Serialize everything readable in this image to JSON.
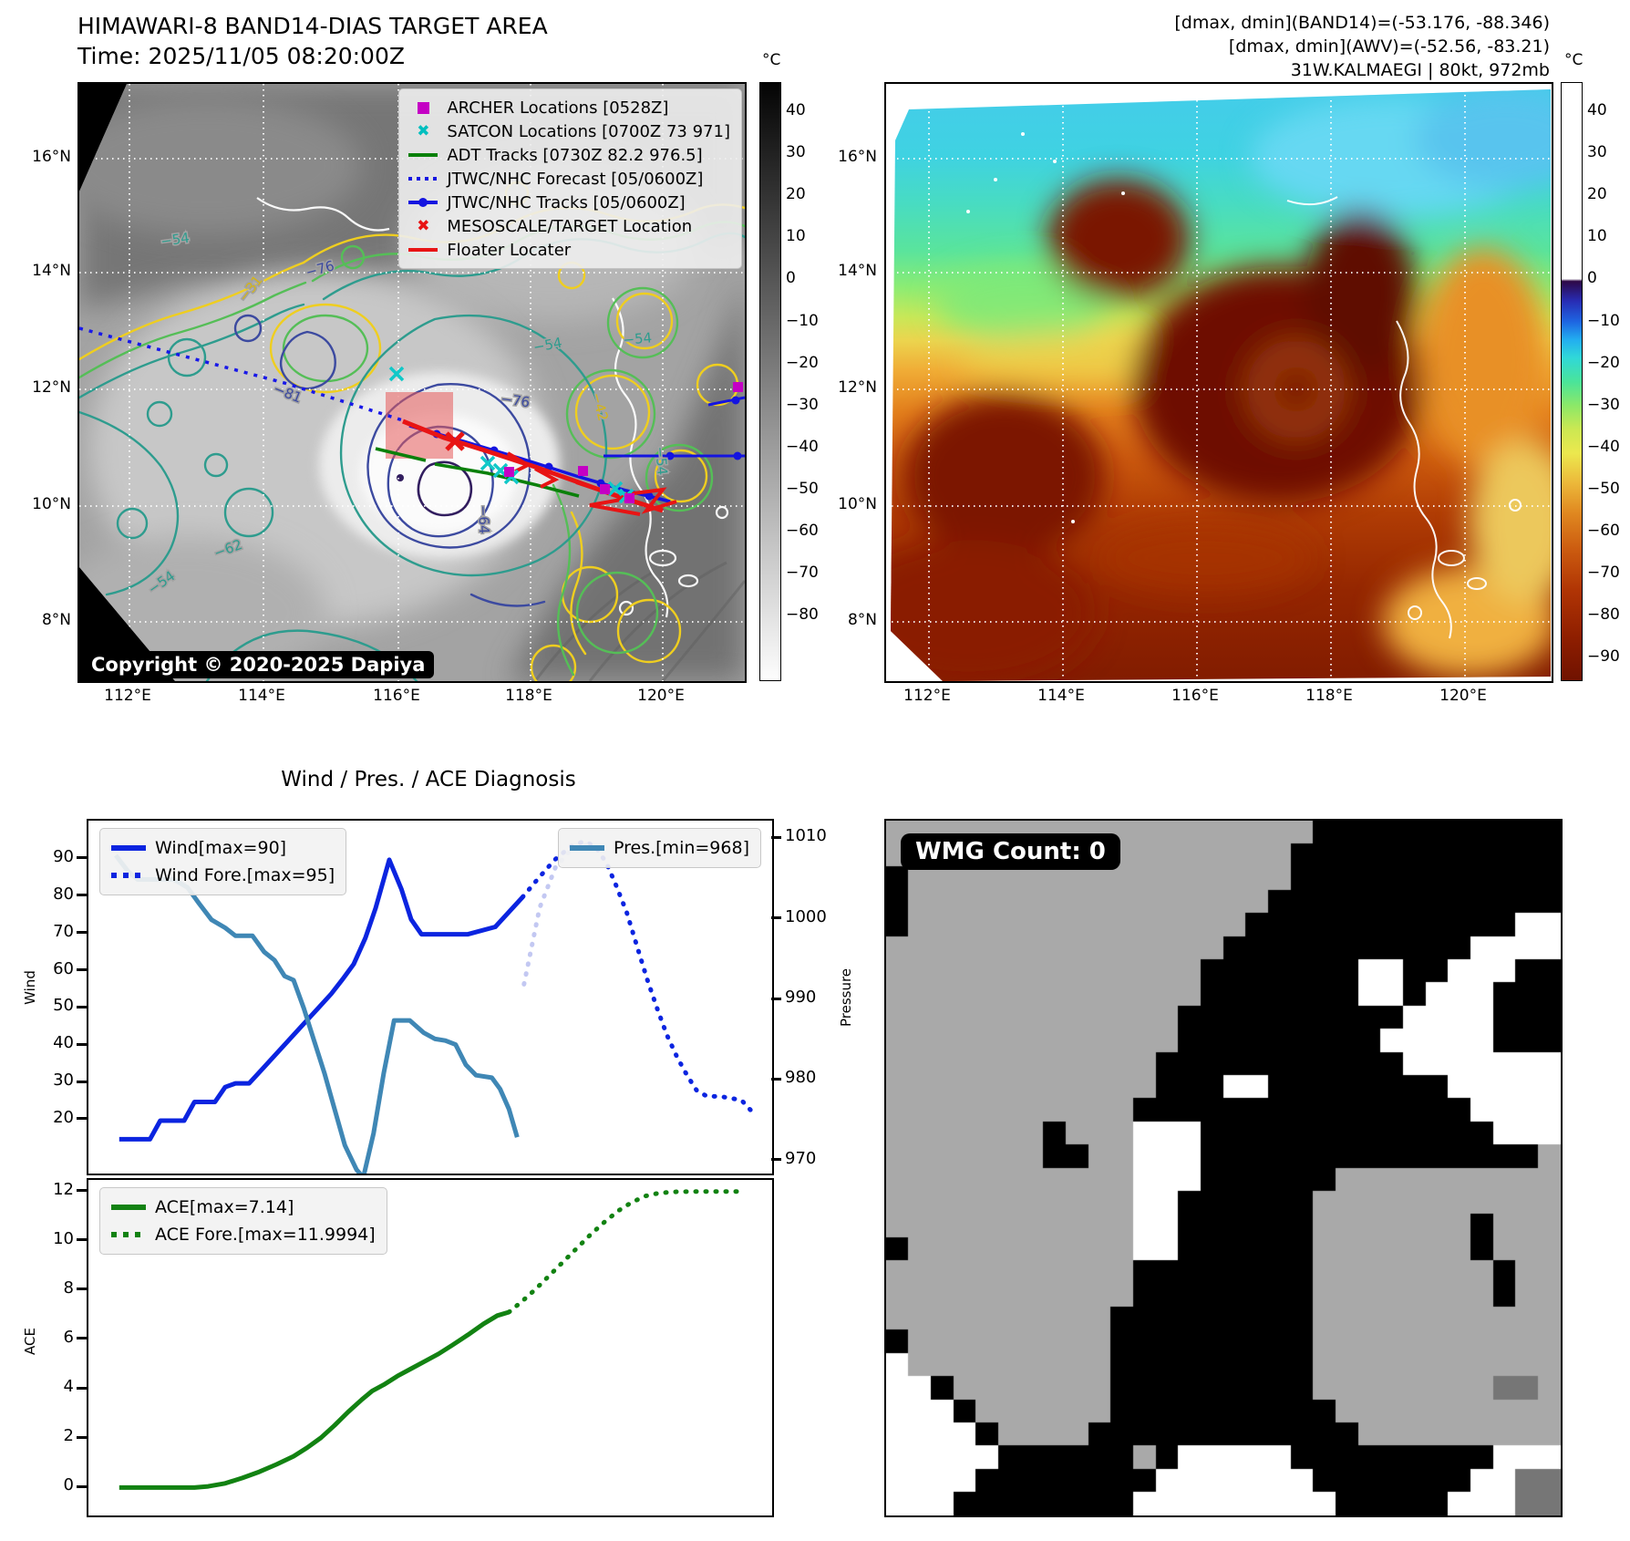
{
  "header": {
    "title": "HIMAWARI-8 BAND14-DIAS TARGET AREA",
    "time": "Time: 2025/11/05 08:20:00Z",
    "right_lines": [
      "[dmax, dmin](BAND14)=(-53.176, -88.346)",
      "[dmax, dmin](AWV)=(-52.56, -83.21)",
      "31W.KALMAEGI | 80kt, 972mb"
    ]
  },
  "left_map": {
    "legend": [
      {
        "label": "ARCHER Locations [0528Z]",
        "marker": "magenta-square"
      },
      {
        "label": "SATCON Locations [0700Z 73 971]",
        "marker": "cyan-x"
      },
      {
        "label": "ADT Tracks [0730Z 82.2 976.5]",
        "marker": "green-line"
      },
      {
        "label": "JTWC/NHC Forecast [05/0600Z]",
        "marker": "blue-dotted-line"
      },
      {
        "label": "JTWC/NHC Tracks [05/0600Z]",
        "marker": "blue-line-dot"
      },
      {
        "label": "MESOSCALE/TARGET Location",
        "marker": "red-x"
      },
      {
        "label": "Floater Locater",
        "marker": "red-line"
      }
    ],
    "copyright": "Copyright © 2020-2025 Dapiya",
    "x_ticks": [
      "112°E",
      "114°E",
      "116°E",
      "118°E",
      "120°E"
    ],
    "y_ticks": [
      "16°N",
      "14°N",
      "12°N",
      "10°N",
      "8°N"
    ],
    "colorbar": {
      "unit": "°C",
      "ticks": [
        "40",
        "30",
        "20",
        "10",
        "0",
        "−10",
        "−20",
        "−30",
        "−40",
        "−50",
        "−60",
        "−70",
        "−80"
      ]
    },
    "contour_labels": [
      {
        "text": "−76"
      },
      {
        "text": "−76"
      },
      {
        "text": "−54"
      },
      {
        "text": "−54"
      },
      {
        "text": "−54"
      },
      {
        "text": "−54"
      },
      {
        "text": "−31"
      },
      {
        "text": "−81"
      },
      {
        "text": "−42"
      },
      {
        "text": "−64"
      },
      {
        "text": "−62"
      },
      {
        "text": "−54"
      }
    ]
  },
  "right_map": {
    "x_ticks": [
      "112°E",
      "114°E",
      "116°E",
      "118°E",
      "120°E"
    ],
    "y_ticks": [
      "16°N",
      "14°N",
      "12°N",
      "10°N",
      "8°N"
    ],
    "colorbar": {
      "unit": "°C",
      "ticks": [
        "40",
        "30",
        "20",
        "10",
        "0",
        "−10",
        "−20",
        "−30",
        "−40",
        "−50",
        "−60",
        "−70",
        "−80",
        "−90"
      ]
    }
  },
  "wmg": {
    "badge": "WMG Count: 0",
    "palette": {
      "g": "#a9a9a9",
      "b": "#000000",
      "w": "#ffffff",
      "d": "#767676"
    },
    "grid": [
      "gggggggggggggggggggbbbbbbbbbbb",
      "ggggggggggggggggggbbbbbbbbbbbb",
      "bgggggggggggggggggbbbbbbbbbbbb",
      "bggggggggggggggggbbbbbbbbbbbbb",
      "bgggggggggggggggbbbbbbbbbbbbww",
      "gggggggggggggggbbbbbbbbbbbwwww",
      "ggggggggggggggbbbbbbbwwbbwwwbb",
      "ggggggggggggggbbbbbbbwwbwwwbbb",
      "gggggggggggggbbbbbbbbbbwwwwbbb",
      "gggggggggggggbbbbbbbbbwwwwwbbb",
      "ggggggggggggbbbbbbbbbbbwwwwwww",
      "ggggggggggggbbbwwbbbbbbbbwwwww",
      "gggggggggggbbbbbbbbbbbbbbbwwww",
      "gggggggbgggwwwbbbbbbbbbbbbbwww",
      "gggggggbbggwwwbbbbbbbbbbbbbbbg",
      "gggggggggggwwwbbbbbbgggggggggg",
      "gggggggggggwwbbbbbbggggggggggg",
      "gggggggggggwwbbbbbbgggggggbggg",
      "bggggggggggwwbbbbbbgggggggbggg",
      "gggggggggggbbbbbbbbggggggggbgg",
      "gggggggggggbbbbbbbbggggggggbgg",
      "ggggggggggbbbbbbbbbggggggggggg",
      "bgggggggggbbbbbbbbbggggggggggg",
      "wgggggggggbbbbbbbbbggggggggggg",
      "wwbgggggggbbbbbbbbbggggggggddg",
      "wwwbggggggbbbbbbbbbbgggggggggg",
      "wwwwbggggbbbbbbbbbbbbggggggggg",
      "wwwwwbbbbbbgbwwwwwbbbbbbbbbwww",
      "wwwwbbbbbbbbwwwwwwwbbbbbbbwwdd",
      "wwwbbbbbbbbwwwwwwwwwbbbbbwwwdd"
    ]
  },
  "chart_data": [
    {
      "type": "line",
      "title": "Wind / Pres. / ACE Diagnosis",
      "y_left": {
        "label": "Wind",
        "ticks": [
          20,
          30,
          40,
          50,
          60,
          70,
          80,
          90
        ],
        "range": [
          5.8,
          100.5
        ]
      },
      "y_right": {
        "label": "Pressure",
        "ticks": [
          970,
          980,
          990,
          1000,
          1010
        ],
        "range": [
          968.5,
          1012.3
        ]
      },
      "series": [
        {
          "name": "Wind[max=90]",
          "axis": "left",
          "color": "#0b24e0",
          "style": "solid",
          "points": [
            [
              0.045,
              15
            ],
            [
              0.09,
              15
            ],
            [
              0.105,
              20
            ],
            [
              0.14,
              20
            ],
            [
              0.155,
              25
            ],
            [
              0.185,
              25
            ],
            [
              0.2,
              29
            ],
            [
              0.215,
              30
            ],
            [
              0.235,
              30
            ],
            [
              0.255,
              34
            ],
            [
              0.275,
              38
            ],
            [
              0.295,
              42
            ],
            [
              0.315,
              46
            ],
            [
              0.335,
              50
            ],
            [
              0.355,
              54
            ],
            [
              0.372,
              58
            ],
            [
              0.388,
              62
            ],
            [
              0.405,
              69
            ],
            [
              0.42,
              77
            ],
            [
              0.44,
              90
            ],
            [
              0.458,
              82
            ],
            [
              0.472,
              74
            ],
            [
              0.487,
              70
            ],
            [
              0.555,
              70
            ],
            [
              0.595,
              72
            ],
            [
              0.635,
              80
            ]
          ]
        },
        {
          "name": "Wind Fore.[max=95]",
          "axis": "left",
          "color": "#0b24e0",
          "style": "dotted",
          "points": [
            [
              0.635,
              80
            ],
            [
              0.658,
              85
            ],
            [
              0.682,
              90
            ],
            [
              0.705,
              93.5
            ],
            [
              0.725,
              95
            ],
            [
              0.742,
              93.5
            ],
            [
              0.758,
              89
            ],
            [
              0.772,
              83
            ],
            [
              0.787,
              76
            ],
            [
              0.802,
              67
            ],
            [
              0.817,
              58
            ],
            [
              0.832,
              50
            ],
            [
              0.846,
              43
            ],
            [
              0.861,
              37
            ],
            [
              0.876,
              32
            ],
            [
              0.89,
              28
            ],
            [
              0.905,
              26.5
            ],
            [
              0.924,
              26.5
            ],
            [
              0.94,
              26
            ],
            [
              0.955,
              25.5
            ],
            [
              0.975,
              21.5
            ]
          ]
        },
        {
          "name": "Pres.[min=968]",
          "axis": "right",
          "color": "#3f87b5",
          "style": "solid",
          "points": [
            [
              0.04,
              1008
            ],
            [
              0.058,
              1006
            ],
            [
              0.072,
              1005
            ],
            [
              0.1,
              1005
            ],
            [
              0.125,
              1005
            ],
            [
              0.145,
              1004
            ],
            [
              0.162,
              1002
            ],
            [
              0.18,
              1000
            ],
            [
              0.2,
              999
            ],
            [
              0.215,
              998
            ],
            [
              0.24,
              998
            ],
            [
              0.257,
              996
            ],
            [
              0.272,
              995
            ],
            [
              0.287,
              993
            ],
            [
              0.3,
              992.5
            ],
            [
              0.315,
              989
            ],
            [
              0.33,
              985
            ],
            [
              0.345,
              981
            ],
            [
              0.36,
              976.5
            ],
            [
              0.375,
              972
            ],
            [
              0.392,
              969
            ],
            [
              0.402,
              968
            ],
            [
              0.417,
              973.5
            ],
            [
              0.432,
              981
            ],
            [
              0.447,
              987.5
            ],
            [
              0.47,
              987.5
            ],
            [
              0.49,
              986
            ],
            [
              0.507,
              985.2
            ],
            [
              0.522,
              985
            ],
            [
              0.537,
              984.5
            ],
            [
              0.552,
              982
            ],
            [
              0.567,
              980.7
            ],
            [
              0.59,
              980.4
            ],
            [
              0.602,
              979
            ],
            [
              0.615,
              976.5
            ],
            [
              0.627,
              973
            ]
          ]
        },
        {
          "name": "Pres. Fore.",
          "axis": "right",
          "color": "#c3c8f2",
          "style": "dotted",
          "in_legend": false,
          "points": [
            [
              0.637,
              992
            ],
            [
              0.66,
              1001.5
            ],
            [
              0.683,
              1006.5
            ],
            [
              0.707,
              1008.8
            ],
            [
              0.728,
              1009.3
            ]
          ]
        }
      ]
    },
    {
      "type": "line",
      "y_left": {
        "label": "ACE",
        "ticks": [
          0,
          2,
          4,
          6,
          8,
          10,
          12
        ],
        "range": [
          -1.1,
          12.5
        ]
      },
      "series": [
        {
          "name": "ACE[max=7.14]",
          "axis": "left",
          "color": "#128212",
          "style": "solid",
          "points": [
            [
              0.045,
              0.03
            ],
            [
              0.1,
              0.03
            ],
            [
              0.155,
              0.03
            ],
            [
              0.175,
              0.08
            ],
            [
              0.2,
              0.2
            ],
            [
              0.225,
              0.42
            ],
            [
              0.25,
              0.67
            ],
            [
              0.275,
              0.97
            ],
            [
              0.3,
              1.3
            ],
            [
              0.32,
              1.65
            ],
            [
              0.34,
              2.05
            ],
            [
              0.36,
              2.55
            ],
            [
              0.38,
              3.1
            ],
            [
              0.4,
              3.6
            ],
            [
              0.415,
              3.95
            ],
            [
              0.432,
              4.2
            ],
            [
              0.452,
              4.55
            ],
            [
              0.472,
              4.85
            ],
            [
              0.492,
              5.15
            ],
            [
              0.512,
              5.45
            ],
            [
              0.532,
              5.8
            ],
            [
              0.555,
              6.22
            ],
            [
              0.578,
              6.67
            ],
            [
              0.598,
              7.0
            ],
            [
              0.615,
              7.14
            ]
          ]
        },
        {
          "name": "ACE Fore.[max=11.9994]",
          "axis": "left",
          "color": "#128212",
          "style": "dotted",
          "points": [
            [
              0.615,
              7.14
            ],
            [
              0.635,
              7.6
            ],
            [
              0.655,
              8.1
            ],
            [
              0.675,
              8.65
            ],
            [
              0.695,
              9.2
            ],
            [
              0.715,
              9.75
            ],
            [
              0.735,
              10.3
            ],
            [
              0.755,
              10.8
            ],
            [
              0.775,
              11.25
            ],
            [
              0.795,
              11.6
            ],
            [
              0.815,
              11.85
            ],
            [
              0.835,
              11.97
            ],
            [
              0.86,
              12.02
            ],
            [
              0.89,
              12.03
            ],
            [
              0.92,
              12.03
            ],
            [
              0.952,
              12.03
            ]
          ]
        }
      ]
    }
  ]
}
